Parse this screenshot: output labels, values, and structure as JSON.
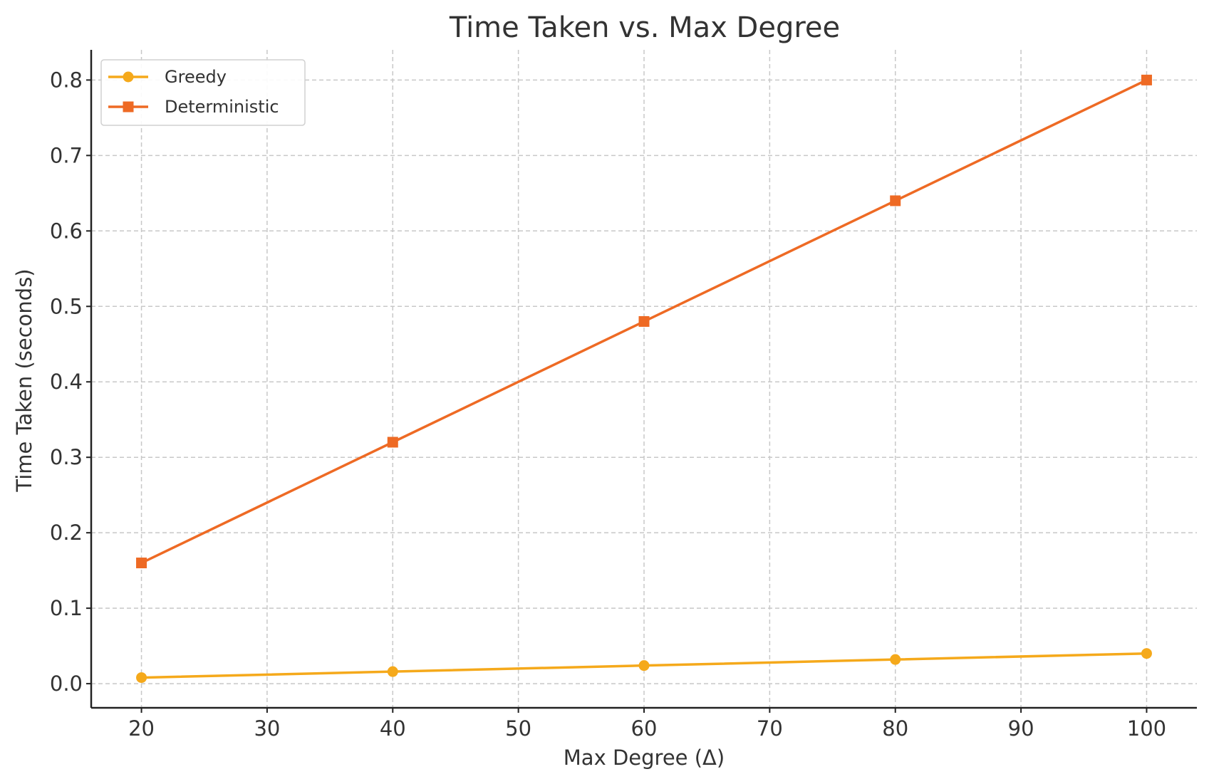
{
  "chart_data": {
    "type": "line",
    "title": "Time Taken vs. Max Degree",
    "xlabel": "Max Degree (Δ)",
    "ylabel": "Time Taken (seconds)",
    "x": [
      20,
      40,
      60,
      80,
      100
    ],
    "xlim": [
      16,
      104
    ],
    "ylim": [
      -0.032,
      0.84
    ],
    "xticks": [
      20,
      30,
      40,
      50,
      60,
      70,
      80,
      90,
      100
    ],
    "yticks": [
      0.0,
      0.1,
      0.2,
      0.3,
      0.4,
      0.5,
      0.6,
      0.7,
      0.8
    ],
    "xtick_labels": [
      "20",
      "30",
      "40",
      "50",
      "60",
      "70",
      "80",
      "90",
      "100"
    ],
    "ytick_labels": [
      "0.0",
      "0.1",
      "0.2",
      "0.3",
      "0.4",
      "0.5",
      "0.6",
      "0.7",
      "0.8"
    ],
    "grid": true,
    "legend_position": "top-left",
    "series": [
      {
        "name": "Greedy",
        "values": [
          0.008,
          0.016,
          0.024,
          0.032,
          0.04
        ],
        "color": "#f5a91b",
        "marker": "circle"
      },
      {
        "name": "Deterministic",
        "values": [
          0.16,
          0.32,
          0.48,
          0.64,
          0.8
        ],
        "color": "#ee6a24",
        "marker": "square"
      }
    ]
  }
}
